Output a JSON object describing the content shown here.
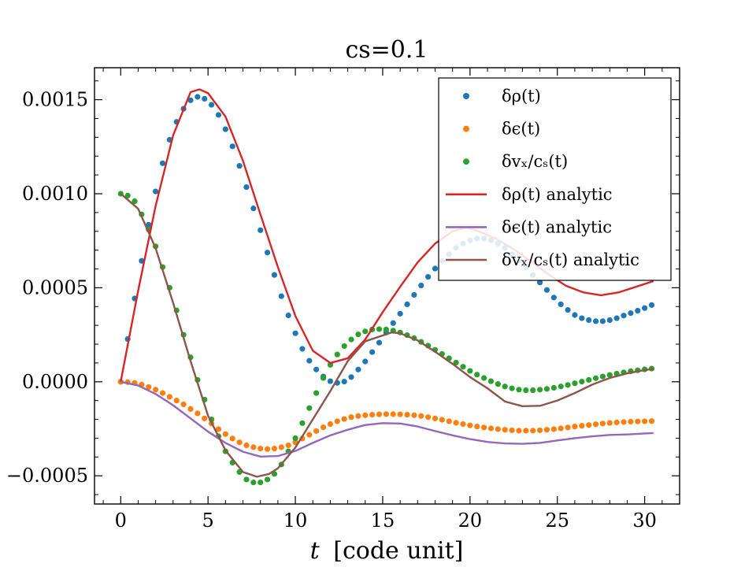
{
  "chart_data": {
    "type": "line",
    "title": "cs=0.1",
    "xlabel_var": "t",
    "xlabel_unit": "[code unit]",
    "ylabel": "",
    "xlim": [
      -1.5,
      32
    ],
    "ylim": [
      -0.00065,
      0.00167
    ],
    "grid": false,
    "legend_position": "top-right",
    "x_ticks": [
      0,
      5,
      10,
      15,
      20,
      25,
      30
    ],
    "x_tick_labels": [
      "0",
      "5",
      "10",
      "15",
      "20",
      "25",
      "30"
    ],
    "y_ticks": [
      -0.0005,
      0.0,
      0.0005,
      0.001,
      0.0015
    ],
    "y_tick_labels": [
      "−0.0005",
      "0.0000",
      "0.0005",
      "0.0010",
      "0.0015"
    ],
    "colors": {
      "blue": "#1f77b4",
      "orange": "#ff7f0e",
      "green": "#2ca02c",
      "red": "#d62728",
      "purple": "#9467bd",
      "brown": "#8c564b"
    },
    "series": [
      {
        "name": "δρ(t)",
        "kind": "scatter",
        "color": "#1f77b4",
        "x": [
          0.0,
          0.4,
          0.8,
          1.2,
          1.6,
          2.0,
          2.4,
          2.8,
          3.2,
          3.6,
          4.0,
          4.4,
          4.8,
          5.2,
          5.6,
          6.0,
          6.4,
          6.8,
          7.2,
          7.6,
          8.0,
          8.4,
          8.8,
          9.2,
          9.6,
          10.0,
          10.4,
          10.8,
          11.2,
          11.6,
          12.0,
          12.4,
          12.8,
          13.2,
          13.6,
          14.0,
          14.4,
          14.8,
          15.2,
          15.6,
          16.0,
          16.4,
          16.8,
          17.2,
          17.6,
          18.0,
          18.4,
          18.8,
          19.2,
          19.6,
          20.0,
          20.4,
          20.8,
          21.2,
          21.6,
          22.0,
          22.4,
          22.8,
          23.2,
          23.6,
          24.0,
          24.4,
          24.8,
          25.2,
          25.6,
          26.0,
          26.4,
          26.8,
          27.2,
          27.6,
          28.0,
          28.4,
          28.8,
          29.2,
          29.6,
          30.0,
          30.4
        ],
        "y": [
          0.0,
          0.000227,
          0.000443,
          0.000643,
          0.000835,
          0.001012,
          0.001162,
          0.001287,
          0.001382,
          0.001452,
          0.001497,
          0.001515,
          0.001505,
          0.001473,
          0.001419,
          0.001343,
          0.001252,
          0.001148,
          0.001035,
          0.000922,
          0.000806,
          0.000687,
          0.000568,
          0.000455,
          0.000353,
          0.000258,
          0.000175,
          0.000112,
          6.5e-05,
          2.8e-05,
          3e-06,
          -6e-06,
          1e-06,
          2.5e-05,
          6.5e-05,
          0.000108,
          0.000158,
          0.000208,
          0.000262,
          0.000312,
          0.000362,
          0.000412,
          0.000462,
          0.000512,
          0.000558,
          0.000602,
          0.000642,
          0.000678,
          0.000712,
          0.000735,
          0.000752,
          0.000762,
          0.000762,
          0.000752,
          0.000735,
          0.000712,
          0.000678,
          0.000645,
          0.000608,
          0.000568,
          0.000528,
          0.000488,
          0.000448,
          0.000412,
          0.000382,
          0.000355,
          0.000338,
          0.000328,
          0.000322,
          0.000322,
          0.000328,
          0.000338,
          0.000352,
          0.000365,
          0.000378,
          0.000392,
          0.000408
        ]
      },
      {
        "name": "δϵ(t)",
        "kind": "scatter",
        "color": "#ff7f0e",
        "x": [
          0.0,
          0.4,
          0.8,
          1.2,
          1.6,
          2.0,
          2.4,
          2.8,
          3.2,
          3.6,
          4.0,
          4.4,
          4.8,
          5.2,
          5.6,
          6.0,
          6.4,
          6.8,
          7.2,
          7.6,
          8.0,
          8.4,
          8.8,
          9.2,
          9.6,
          10.0,
          10.4,
          10.8,
          11.2,
          11.6,
          12.0,
          12.4,
          12.8,
          13.2,
          13.6,
          14.0,
          14.4,
          14.8,
          15.2,
          15.6,
          16.0,
          16.4,
          16.8,
          17.2,
          17.6,
          18.0,
          18.4,
          18.8,
          19.2,
          19.6,
          20.0,
          20.4,
          20.8,
          21.2,
          21.6,
          22.0,
          22.4,
          22.8,
          23.2,
          23.6,
          24.0,
          24.4,
          24.8,
          25.2,
          25.6,
          26.0,
          26.4,
          26.8,
          27.2,
          27.6,
          28.0,
          28.4,
          28.8,
          29.2,
          29.6,
          30.0,
          30.4
        ],
        "y": [
          0.0,
          -2e-06,
          -6e-06,
          -1.5e-05,
          -2.8e-05,
          -4.2e-05,
          -6e-05,
          -8e-05,
          -0.0001,
          -0.00012,
          -0.000145,
          -0.000168,
          -0.000195,
          -0.000222,
          -0.000252,
          -0.000278,
          -0.000302,
          -0.000322,
          -0.000338,
          -0.000348,
          -0.000355,
          -0.000358,
          -0.000355,
          -0.000348,
          -0.000338,
          -0.000322,
          -0.000302,
          -0.000282,
          -0.000262,
          -0.000242,
          -0.000225,
          -0.00021,
          -0.000198,
          -0.000188,
          -0.000182,
          -0.000178,
          -0.000175,
          -0.000173,
          -0.000172,
          -0.000172,
          -0.000173,
          -0.000175,
          -0.000178,
          -0.000182,
          -0.000188,
          -0.000195,
          -0.000202,
          -0.00021,
          -0.000218,
          -0.000225,
          -0.000232,
          -0.000238,
          -0.000243,
          -0.000248,
          -0.000252,
          -0.000255,
          -0.000258,
          -0.00026,
          -0.00026,
          -0.00026,
          -0.000258,
          -0.000255,
          -0.000252,
          -0.000248,
          -0.000243,
          -0.000238,
          -0.000234,
          -0.00023,
          -0.000226,
          -0.000222,
          -0.000219,
          -0.000216,
          -0.000214,
          -0.000212,
          -0.000211,
          -0.00021,
          -0.000209
        ]
      },
      {
        "name": "δvₓ/cₛ(t)",
        "kind": "scatter",
        "color": "#2ca02c",
        "x": [
          0.0,
          0.4,
          0.8,
          1.2,
          1.6,
          2.0,
          2.4,
          2.8,
          3.2,
          3.6,
          4.0,
          4.4,
          4.8,
          5.2,
          5.6,
          6.0,
          6.4,
          6.8,
          7.2,
          7.6,
          8.0,
          8.4,
          8.8,
          9.2,
          9.6,
          10.0,
          10.4,
          10.8,
          11.2,
          11.6,
          12.0,
          12.4,
          12.8,
          13.2,
          13.6,
          14.0,
          14.4,
          14.8,
          15.2,
          15.6,
          16.0,
          16.4,
          16.8,
          17.2,
          17.6,
          18.0,
          18.4,
          18.8,
          19.2,
          19.6,
          20.0,
          20.4,
          20.8,
          21.2,
          21.6,
          22.0,
          22.4,
          22.8,
          23.2,
          23.6,
          24.0,
          24.4,
          24.8,
          25.2,
          25.6,
          26.0,
          26.4,
          26.8,
          27.2,
          27.6,
          28.0,
          28.4,
          28.8,
          29.2,
          29.6,
          30.0,
          30.4
        ],
        "y": [
          0.001,
          0.00099,
          0.00096,
          0.00089,
          0.00081,
          0.00072,
          0.00061,
          0.0005,
          0.00038,
          0.00025,
          0.00013,
          1e-05,
          -9.5e-05,
          -0.0002,
          -0.00029,
          -0.00037,
          -0.00043,
          -0.00048,
          -0.00052,
          -0.000535,
          -0.000535,
          -0.00052,
          -0.00049,
          -0.00044,
          -0.00037,
          -0.0003,
          -0.00022,
          -0.00014,
          -6e-05,
          2e-05,
          9e-05,
          0.000145,
          0.00019,
          0.000225,
          0.000252,
          0.000268,
          0.000278,
          0.00028,
          0.000278,
          0.000272,
          0.000262,
          0.000248,
          0.000232,
          0.000212,
          0.000192,
          0.00017,
          0.000148,
          0.000125,
          0.000102,
          8e-05,
          5.8e-05,
          3.8e-05,
          2e-05,
          3e-06,
          -1.2e-05,
          -2.5e-05,
          -3.5e-05,
          -4.2e-05,
          -4.5e-05,
          -4.5e-05,
          -4.2e-05,
          -3.8e-05,
          -3.2e-05,
          -2.5e-05,
          -1.7e-05,
          -8e-06,
          1e-06,
          1e-05,
          1.9e-05,
          2.8e-05,
          3.6e-05,
          4.3e-05,
          5e-05,
          5.6e-05,
          6.1e-05,
          6.6e-05,
          7e-05
        ]
      },
      {
        "name": "δρ(t) analytic",
        "kind": "line",
        "color": "#d62728",
        "x": [
          0.0,
          1.0,
          2.0,
          3.0,
          4.0,
          4.5,
          5.0,
          6.0,
          7.0,
          8.0,
          9.0,
          10.0,
          11.0,
          12.0,
          13.0,
          14.0,
          15.0,
          16.0,
          17.0,
          18.0,
          19.0,
          19.8,
          20.5,
          21.5,
          22.5,
          23.5,
          24.5,
          25.5,
          26.5,
          27.5,
          28.5,
          29.5,
          30.5
        ],
        "y": [
          0.0,
          0.000485,
          0.000935,
          0.00131,
          0.00154,
          0.001555,
          0.001535,
          0.00141,
          0.001175,
          0.00089,
          0.00061,
          0.00035,
          0.000165,
          0.0001,
          0.000125,
          0.000225,
          0.00037,
          0.000505,
          0.000635,
          0.000735,
          0.0008,
          0.00082,
          0.0008,
          0.00076,
          0.000705,
          0.00064,
          0.00057,
          0.00051,
          0.000475,
          0.00046,
          0.000475,
          0.000505,
          0.000535
        ]
      },
      {
        "name": "δϵ(t) analytic",
        "kind": "line",
        "color": "#9467bd",
        "x": [
          0.0,
          1.0,
          2.0,
          3.0,
          4.0,
          5.0,
          6.0,
          7.0,
          8.0,
          9.0,
          10.0,
          11.0,
          12.0,
          13.0,
          14.0,
          15.0,
          16.0,
          17.0,
          18.0,
          19.0,
          20.0,
          21.0,
          22.0,
          23.0,
          24.0,
          25.0,
          26.0,
          27.0,
          28.0,
          29.0,
          30.0,
          30.5
        ],
        "y": [
          0.0,
          -2e-05,
          -6.5e-05,
          -0.000125,
          -0.000195,
          -0.000265,
          -0.000325,
          -0.000372,
          -0.000398,
          -0.000395,
          -0.000368,
          -0.000325,
          -0.000285,
          -0.000255,
          -0.00023,
          -0.00022,
          -0.000222,
          -0.000238,
          -0.000262,
          -0.000285,
          -0.000305,
          -0.00032,
          -0.000328,
          -0.00033,
          -0.000325,
          -0.000312,
          -0.0003,
          -0.00029,
          -0.000283,
          -0.00028,
          -0.000275,
          -0.000273
        ]
      },
      {
        "name": "δvₓ/cₛ(t) analytic",
        "kind": "line",
        "color": "#8c564b",
        "x": [
          0.0,
          1.0,
          2.0,
          3.0,
          4.0,
          5.0,
          6.0,
          7.0,
          7.8,
          8.5,
          9.0,
          10.0,
          11.0,
          12.0,
          13.0,
          14.0,
          15.5,
          16.0,
          17.0,
          18.0,
          19.0,
          20.0,
          21.0,
          22.0,
          23.0,
          24.0,
          25.0,
          26.0,
          27.0,
          28.0,
          29.0,
          30.0,
          30.5
        ],
        "y": [
          0.001,
          0.00092,
          0.00071,
          0.00042,
          0.00011,
          -0.00018,
          -0.000365,
          -0.00048,
          -0.000505,
          -0.00049,
          -0.00046,
          -0.00035,
          -0.0002,
          -5e-05,
          0.00011,
          0.000215,
          0.000262,
          0.000258,
          0.00022,
          0.00016,
          9.5e-05,
          2.5e-05,
          -3.5e-05,
          -0.000105,
          -0.00013,
          -0.000128,
          -0.0001,
          -6e-05,
          -1.5e-05,
          2e-05,
          4.5e-05,
          6.2e-05,
          6.8e-05
        ]
      }
    ],
    "legend": {
      "entries": [
        {
          "label": "δρ(t)",
          "kind": "marker",
          "color": "#1f77b4"
        },
        {
          "label": "δϵ(t)",
          "kind": "marker",
          "color": "#ff7f0e"
        },
        {
          "label": "δvₓ/cₛ(t)",
          "kind": "marker",
          "color": "#2ca02c"
        },
        {
          "label": "δρ(t) analytic",
          "kind": "line",
          "color": "#d62728"
        },
        {
          "label": "δϵ(t) analytic",
          "kind": "line",
          "color": "#9467bd"
        },
        {
          "label": "δvₓ/cₛ(t) analytic",
          "kind": "line",
          "color": "#8c564b"
        }
      ]
    }
  }
}
